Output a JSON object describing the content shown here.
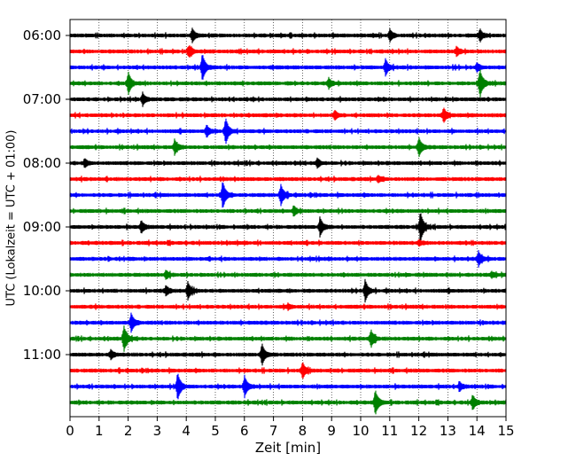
{
  "chart_data": {
    "type": "line",
    "title": "",
    "xlabel": "Zeit  [min]",
    "ylabel": "UTC (Lokalzeit = UTC + 01:00)",
    "xlim": [
      0,
      15
    ],
    "x_ticks": [
      "0",
      "1",
      "2",
      "3",
      "4",
      "5",
      "6",
      "7",
      "8",
      "9",
      "10",
      "11",
      "12",
      "13",
      "14",
      "15"
    ],
    "y_tick_labels": [
      "06:00",
      "07:00",
      "08:00",
      "09:00",
      "10:00",
      "11:00"
    ],
    "grid": "vertical dotted",
    "trace_interval_min": 15,
    "trace_colors": [
      "#000000",
      "#ff0000",
      "#0000ff",
      "#008000"
    ],
    "series": [
      {
        "start": "06:00",
        "color": "#000000",
        "events": [
          [
            4.2,
            0.5
          ],
          [
            11.0,
            0.45
          ],
          [
            14.1,
            0.45
          ]
        ]
      },
      {
        "start": "06:15",
        "color": "#ff0000",
        "events": [
          [
            4.1,
            0.45
          ],
          [
            13.3,
            0.35
          ]
        ]
      },
      {
        "start": "06:30",
        "color": "#0000ff",
        "events": [
          [
            4.55,
            1.0
          ],
          [
            10.85,
            0.6
          ],
          [
            14.0,
            0.3
          ]
        ]
      },
      {
        "start": "06:45",
        "color": "#008000",
        "events": [
          [
            2.0,
            0.85
          ],
          [
            14.1,
            1.1
          ],
          [
            8.9,
            0.35
          ]
        ]
      },
      {
        "start": "07:00",
        "color": "#000000",
        "events": [
          [
            2.5,
            0.45
          ]
        ]
      },
      {
        "start": "07:15",
        "color": "#ff0000",
        "events": [
          [
            12.85,
            0.55
          ],
          [
            9.1,
            0.35
          ]
        ]
      },
      {
        "start": "07:30",
        "color": "#0000ff",
        "events": [
          [
            5.35,
            1.0
          ],
          [
            4.7,
            0.45
          ]
        ]
      },
      {
        "start": "07:45",
        "color": "#008000",
        "events": [
          [
            3.6,
            0.55
          ],
          [
            12.0,
            0.7
          ]
        ]
      },
      {
        "start": "08:00",
        "color": "#000000",
        "events": [
          [
            0.5,
            0.3
          ],
          [
            8.5,
            0.35
          ]
        ]
      },
      {
        "start": "08:15",
        "color": "#ff0000",
        "events": [
          [
            10.6,
            0.25
          ]
        ]
      },
      {
        "start": "08:30",
        "color": "#0000ff",
        "events": [
          [
            5.25,
            1.05
          ],
          [
            7.25,
            0.8
          ]
        ]
      },
      {
        "start": "08:45",
        "color": "#008000",
        "events": [
          [
            7.7,
            0.35
          ]
        ]
      },
      {
        "start": "09:00",
        "color": "#000000",
        "events": [
          [
            2.45,
            0.45
          ],
          [
            8.6,
            0.65
          ],
          [
            12.05,
            1.15
          ]
        ]
      },
      {
        "start": "09:15",
        "color": "#ff0000",
        "events": [
          [
            12.0,
            0.2
          ]
        ]
      },
      {
        "start": "09:30",
        "color": "#0000ff",
        "events": [
          [
            14.05,
            0.55
          ]
        ]
      },
      {
        "start": "09:45",
        "color": "#008000",
        "events": [
          [
            3.3,
            0.3
          ],
          [
            14.5,
            0.2
          ]
        ]
      },
      {
        "start": "10:00",
        "color": "#000000",
        "events": [
          [
            4.05,
            0.65
          ],
          [
            10.15,
            0.8
          ],
          [
            3.3,
            0.35
          ]
        ]
      },
      {
        "start": "10:15",
        "color": "#ff0000",
        "events": [
          [
            7.5,
            0.2
          ]
        ]
      },
      {
        "start": "10:30",
        "color": "#0000ff",
        "events": [
          [
            2.1,
            0.7
          ]
        ]
      },
      {
        "start": "10:45",
        "color": "#008000",
        "events": [
          [
            1.85,
            1.0
          ],
          [
            10.35,
            0.65
          ]
        ]
      },
      {
        "start": "11:00",
        "color": "#000000",
        "events": [
          [
            6.6,
            0.85
          ],
          [
            1.4,
            0.3
          ]
        ]
      },
      {
        "start": "11:15",
        "color": "#ff0000",
        "events": [
          [
            8.0,
            0.6
          ]
        ]
      },
      {
        "start": "11:30",
        "color": "#0000ff",
        "events": [
          [
            3.7,
            1.05
          ],
          [
            6.0,
            0.8
          ],
          [
            13.4,
            0.3
          ]
        ]
      },
      {
        "start": "11:45",
        "color": "#008000",
        "events": [
          [
            10.5,
            0.95
          ],
          [
            13.85,
            0.55
          ]
        ]
      }
    ]
  }
}
